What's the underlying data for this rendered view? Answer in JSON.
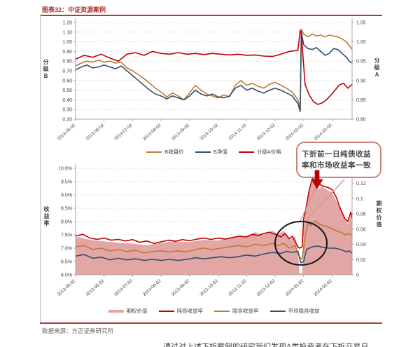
{
  "figure": {
    "title": "图表32：中证资源案例",
    "source": "数据来源：方正证券研究所",
    "footer_partial": "通过对上述下折案例的研究我们发现A类投资者在下折交易日",
    "annotation": {
      "line1": "下折前一日纯债收益",
      "line2": "率和市场收益率一致"
    },
    "colors": {
      "accent_red": "#c00000",
      "orange": "#bf7b33",
      "navy": "#31506f",
      "pink_area": "#e2a6a4",
      "rule_red": "#b03a36",
      "bubble_border": "#c9827c",
      "circle_black": "#141414"
    }
  },
  "chart_data": [
    {
      "type": "line",
      "x_domain": [
        0,
        9.7
      ],
      "x_tick_labels": [
        "2013-05-02",
        "2013-06-02",
        "2013-07-02",
        "2013-08-02",
        "2013-09-02",
        "2013-10-02",
        "2013-11-02",
        "2013-12-02",
        "2014-01-02",
        "2014-02-02"
      ],
      "left_axis": {
        "label": "分级B",
        "min": 0.2,
        "max": 1.2,
        "tick_values": [
          1.2,
          1.1,
          1.0,
          0.9,
          0.8,
          0.7,
          0.6,
          0.5,
          0.4,
          0.3,
          0.2
        ],
        "tick_labels": [
          "1.20",
          "1.10",
          "1.00",
          "0.90",
          "0.80",
          "0.70",
          "0.60",
          "0.50",
          "0.40",
          "0.30",
          "0.20"
        ]
      },
      "right_axis": {
        "label": "分级A",
        "min": 0.8,
        "max": 1.05,
        "tick_values": [
          1.05,
          1.0,
          0.95,
          0.9,
          0.85,
          0.8
        ],
        "tick_labels": [
          "1.05",
          "1.00",
          "0.95",
          "0.90",
          "0.85",
          "0.80"
        ]
      },
      "series": [
        {
          "name": "B收盘价",
          "color": "#bf7b33",
          "axis": "left",
          "kind": "line",
          "x": [
            0,
            0.2,
            0.4,
            0.6,
            0.8,
            1.0,
            1.2,
            1.4,
            1.6,
            1.8,
            2.0,
            2.2,
            2.4,
            2.6,
            2.8,
            3.0,
            3.2,
            3.4,
            3.6,
            3.8,
            4.0,
            4.2,
            4.4,
            4.6,
            4.8,
            5.0,
            5.2,
            5.4,
            5.6,
            5.8,
            6.0,
            6.2,
            6.4,
            6.6,
            6.8,
            7.0,
            7.2,
            7.4,
            7.6,
            7.8,
            7.88,
            7.92,
            8.0,
            8.15,
            8.3,
            8.45,
            8.6,
            8.75,
            8.9,
            9.05,
            9.2,
            9.35,
            9.5,
            9.6,
            9.7
          ],
          "y": [
            0.75,
            0.78,
            0.8,
            0.79,
            0.81,
            0.79,
            0.8,
            0.78,
            0.79,
            0.73,
            0.7,
            0.66,
            0.62,
            0.57,
            0.52,
            0.48,
            0.43,
            0.47,
            0.44,
            0.4,
            0.47,
            0.55,
            0.5,
            0.46,
            0.44,
            0.42,
            0.45,
            0.43,
            0.55,
            0.6,
            0.55,
            0.57,
            0.54,
            0.52,
            0.56,
            0.58,
            0.55,
            0.52,
            0.48,
            0.4,
            0.3,
            1.13,
            1.08,
            1.05,
            1.08,
            1.06,
            1.07,
            1.05,
            1.07,
            1.06,
            1.05,
            1.03,
            1.0,
            0.96,
            0.92
          ]
        },
        {
          "name": "B净值",
          "color": "#31506f",
          "axis": "left",
          "kind": "line",
          "x": [
            0,
            0.2,
            0.4,
            0.6,
            0.8,
            1.0,
            1.2,
            1.4,
            1.6,
            1.8,
            2.0,
            2.2,
            2.4,
            2.6,
            2.8,
            3.0,
            3.2,
            3.4,
            3.6,
            3.8,
            4.0,
            4.2,
            4.4,
            4.6,
            4.8,
            5.0,
            5.2,
            5.4,
            5.6,
            5.8,
            6.0,
            6.2,
            6.4,
            6.6,
            6.8,
            7.0,
            7.2,
            7.4,
            7.6,
            7.8,
            7.88,
            7.92,
            8.0,
            8.15,
            8.3,
            8.45,
            8.6,
            8.75,
            8.9,
            9.05,
            9.2,
            9.35,
            9.5,
            9.6,
            9.7
          ],
          "y": [
            0.71,
            0.74,
            0.76,
            0.73,
            0.74,
            0.76,
            0.74,
            0.72,
            0.75,
            0.7,
            0.65,
            0.6,
            0.55,
            0.5,
            0.46,
            0.44,
            0.41,
            0.44,
            0.42,
            0.4,
            0.44,
            0.5,
            0.46,
            0.44,
            0.46,
            0.43,
            0.42,
            0.44,
            0.52,
            0.55,
            0.5,
            0.52,
            0.49,
            0.47,
            0.5,
            0.52,
            0.5,
            0.47,
            0.44,
            0.36,
            0.28,
            1.1,
            0.97,
            0.93,
            0.92,
            0.94,
            0.9,
            0.86,
            0.88,
            0.93,
            0.92,
            0.88,
            0.84,
            0.8,
            0.78
          ]
        },
        {
          "name": "分级A价格",
          "color": "#c00000",
          "axis": "right",
          "kind": "line",
          "x": [
            0,
            0.3,
            0.6,
            0.9,
            1.2,
            1.5,
            1.8,
            2.1,
            2.4,
            2.7,
            3.0,
            3.3,
            3.6,
            3.9,
            4.2,
            4.5,
            4.8,
            5.1,
            5.4,
            5.7,
            6.0,
            6.3,
            6.6,
            6.9,
            7.2,
            7.5,
            7.8,
            7.88,
            7.92,
            8.05,
            8.2,
            8.35,
            8.5,
            8.65,
            8.8,
            8.95,
            9.1,
            9.25,
            9.4,
            9.55,
            9.7
          ],
          "y": [
            0.955,
            0.965,
            0.96,
            0.968,
            0.958,
            0.95,
            0.968,
            0.972,
            0.965,
            0.975,
            0.97,
            0.968,
            0.972,
            0.968,
            0.97,
            0.967,
            0.97,
            0.968,
            0.966,
            0.968,
            0.965,
            0.966,
            0.963,
            0.962,
            0.968,
            0.975,
            0.978,
            1.03,
            1.02,
            0.89,
            0.862,
            0.845,
            0.838,
            0.842,
            0.85,
            0.862,
            0.875,
            0.888,
            0.893,
            0.88,
            0.89
          ]
        }
      ]
    },
    {
      "type": "line-area",
      "x_domain": [
        0,
        9.7
      ],
      "x_tick_labels": [
        "2013-05-02",
        "2013-06-02",
        "2013-07-02",
        "2013-08-02",
        "2013-09-02",
        "2013-10-02",
        "2013-11-02",
        "2013-12-02",
        "2014-01-02",
        "2014-02-02"
      ],
      "left_axis": {
        "label": "收益率",
        "min": 6.0,
        "max": 10.0,
        "tick_values": [
          10.0,
          9.5,
          9.0,
          8.5,
          8.0,
          7.5,
          7.0,
          6.5,
          6.0
        ],
        "tick_labels": [
          "10.0%",
          "9.5%",
          "9.0%",
          "8.5%",
          "8.0%",
          "7.5%",
          "7.0%",
          "6.5%",
          "6.0%"
        ]
      },
      "right_axis": {
        "label": "期权价值",
        "min": 0,
        "max": 0.14,
        "tick_values": [
          0.12,
          0.1,
          0.08,
          0.06,
          0.04,
          0.02,
          0
        ],
        "tick_labels": [
          "0.12",
          "0.1",
          "0.08",
          "0.06",
          "0.04",
          "0.02",
          "0"
        ]
      },
      "series": [
        {
          "name": "期权价值",
          "color": "#e2a6a4",
          "axis": "right",
          "kind": "area",
          "x": [
            0,
            0.5,
            1.0,
            1.5,
            2.0,
            2.5,
            3.0,
            3.5,
            4.0,
            4.5,
            5.0,
            5.5,
            6.0,
            6.3,
            6.6,
            6.9,
            7.1,
            7.3,
            7.5,
            7.7,
            7.8,
            7.85,
            7.95,
            8.0,
            8.1,
            8.2,
            8.3,
            8.4,
            8.5,
            8.65,
            8.8,
            9.0,
            9.2,
            9.4,
            9.55,
            9.65,
            9.7
          ],
          "y": [
            0.05,
            0.046,
            0.044,
            0.042,
            0.041,
            0.039,
            0.042,
            0.044,
            0.043,
            0.046,
            0.045,
            0.049,
            0.051,
            0.056,
            0.053,
            0.058,
            0.053,
            0.058,
            0.046,
            0.051,
            0.03,
            0.002,
            0.002,
            0.06,
            0.095,
            0.108,
            0.122,
            0.128,
            0.112,
            0.116,
            0.112,
            0.108,
            0.093,
            0.076,
            0.066,
            0.078,
            0.068
          ]
        },
        {
          "name": "纯债收益率",
          "color": "#c00000",
          "axis": "left",
          "kind": "line",
          "x": [
            0,
            0.25,
            0.5,
            0.75,
            1.0,
            1.25,
            1.5,
            1.75,
            2.0,
            2.25,
            2.5,
            2.75,
            3.0,
            3.25,
            3.5,
            3.75,
            4.0,
            4.25,
            4.5,
            4.75,
            5.0,
            5.25,
            5.5,
            5.75,
            6.0,
            6.2,
            6.4,
            6.6,
            6.8,
            7.0,
            7.2,
            7.35,
            7.5,
            7.6,
            7.7,
            7.8,
            7.85,
            7.95,
            8.0,
            8.1,
            8.2,
            8.3,
            8.4,
            8.45,
            8.55,
            8.7,
            8.85,
            9.0,
            9.15,
            9.3,
            9.45,
            9.55,
            9.65,
            9.7
          ],
          "y": [
            7.45,
            7.52,
            7.38,
            7.33,
            7.38,
            7.3,
            7.33,
            7.27,
            7.32,
            7.22,
            7.27,
            7.18,
            7.24,
            7.3,
            7.26,
            7.32,
            7.28,
            7.34,
            7.38,
            7.33,
            7.38,
            7.34,
            7.4,
            7.45,
            7.42,
            7.52,
            7.47,
            7.55,
            7.6,
            7.52,
            7.42,
            7.55,
            7.35,
            7.45,
            7.25,
            7.05,
            7.0,
            7.05,
            8.1,
            8.6,
            9.2,
            9.6,
            9.7,
            9.35,
            9.4,
            9.32,
            9.28,
            9.2,
            8.9,
            8.45,
            8.1,
            8.0,
            8.35,
            8.1
          ]
        },
        {
          "name": "隐含收益率",
          "color": "#bf7b33",
          "axis": "left",
          "kind": "line",
          "x": [
            0,
            0.3,
            0.6,
            0.9,
            1.2,
            1.5,
            1.8,
            2.1,
            2.4,
            2.7,
            3.0,
            3.3,
            3.6,
            3.9,
            4.2,
            4.5,
            4.8,
            5.1,
            5.4,
            5.7,
            6.0,
            6.3,
            6.6,
            6.9,
            7.1,
            7.3,
            7.5,
            7.7,
            7.8,
            7.9,
            7.95,
            8.05,
            8.15,
            8.25,
            8.4,
            8.55,
            8.7,
            8.85,
            9.0,
            9.15,
            9.3,
            9.45,
            9.6,
            9.7
          ],
          "y": [
            7.05,
            7.1,
            6.95,
            7.0,
            6.9,
            6.95,
            6.87,
            6.92,
            6.82,
            6.87,
            6.9,
            6.86,
            6.9,
            6.86,
            6.95,
            7.0,
            6.95,
            7.0,
            7.05,
            7.1,
            7.05,
            7.15,
            7.1,
            7.18,
            7.1,
            7.18,
            7.0,
            7.1,
            6.8,
            6.6,
            6.62,
            7.4,
            7.95,
            7.85,
            8.02,
            7.9,
            7.85,
            7.8,
            7.72,
            7.65,
            7.6,
            7.5,
            7.55,
            7.45
          ]
        },
        {
          "name": "平均隐含收益",
          "color": "#31506f",
          "axis": "left",
          "kind": "line",
          "x": [
            0,
            0.3,
            0.6,
            0.9,
            1.2,
            1.5,
            1.8,
            2.1,
            2.4,
            2.7,
            3.0,
            3.3,
            3.6,
            3.9,
            4.2,
            4.5,
            4.8,
            5.1,
            5.4,
            5.7,
            6.0,
            6.3,
            6.6,
            6.9,
            7.2,
            7.4,
            7.6,
            7.8,
            7.9,
            8.0,
            8.1,
            8.3,
            8.5,
            8.7,
            8.9,
            9.1,
            9.3,
            9.5,
            9.6,
            9.7
          ],
          "y": [
            6.7,
            6.76,
            6.62,
            6.66,
            6.56,
            6.62,
            6.56,
            6.6,
            6.54,
            6.58,
            6.54,
            6.58,
            6.54,
            6.58,
            6.64,
            6.6,
            6.64,
            6.68,
            6.64,
            6.68,
            6.74,
            6.7,
            6.78,
            6.84,
            6.8,
            6.88,
            6.84,
            6.88,
            6.45,
            6.5,
            6.95,
            7.05,
            7.08,
            7.02,
            7.0,
            7.0,
            6.95,
            6.86,
            6.9,
            6.8
          ]
        }
      ]
    }
  ]
}
